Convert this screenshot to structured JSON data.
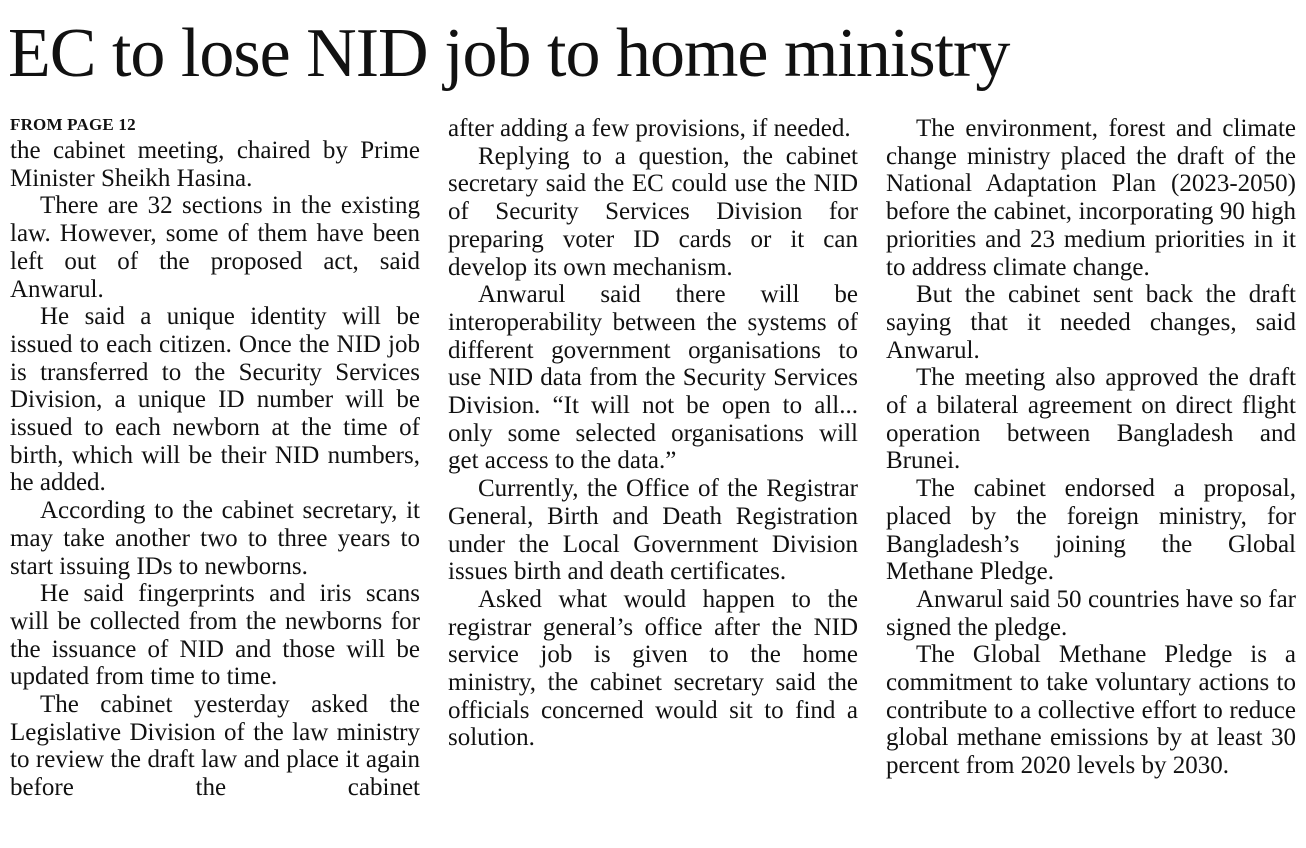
{
  "headline": "EC to lose NID job to home ministry",
  "jump_label": "FROM PAGE 12",
  "columns": [
    {
      "paragraphs": [
        "the cabinet meeting, chaired by Prime Minister Sheikh Hasina.",
        "There are 32 sections in the existing law. However, some of them have been left out of the proposed act, said Anwarul.",
        "He said a unique identity will be issued to each citizen. Once the NID job is transferred to the Security Services Division, a unique ID number will be issued to each newborn at the time of birth, which will be their NID numbers, he added.",
        "According to the cabinet secretary, it may take another two to three years to start issuing IDs to newborns.",
        "He said fingerprints and iris scans will be collected from the newborns for the issuance of NID and those will be updated from time to time.",
        "The cabinet yesterday asked the Legislative Division of the law ministry to review the draft law and place it again before the cabinet"
      ]
    },
    {
      "paragraphs": [
        "after adding a few provisions, if needed.",
        "Replying to a question, the cabinet secretary said the EC could use the NID of Security Services Division for preparing voter ID cards or it can develop its own mechanism.",
        "Anwarul said there will be interoperability between the systems of different government organisations to use NID data from the Security Services Division. “It will not be open to all... only some selected organisations will get access to the data.”",
        "Currently, the Office of the Registrar General, Birth and Death Registration under the Local Government Division issues birth and death certificates.",
        "Asked what would happen to the registrar general’s office after the NID service job is given to the home ministry, the cabinet secretary said the officials concerned would sit to find a solution."
      ]
    },
    {
      "paragraphs": [
        "The environment, forest and climate change ministry placed the draft of the National Adaptation Plan (2023-2050) before the cabinet, incorporating 90 high priorities and 23 medium priorities in it to address climate change.",
        "But the cabinet sent back the draft saying that it needed changes, said Anwarul.",
        "The meeting also approved the draft of a bilateral agreement on direct flight operation between Bangladesh and Brunei.",
        "The cabinet endorsed a proposal, placed by the foreign ministry, for Bangladesh’s joining the Global Methane Pledge.",
        "Anwarul said 50 countries have so far signed the pledge.",
        "The Global Methane Pledge is a commitment to take voluntary actions to contribute to a collective effort to reduce global methane emissions by at least 30 percent from 2020 levels by 2030."
      ]
    }
  ]
}
